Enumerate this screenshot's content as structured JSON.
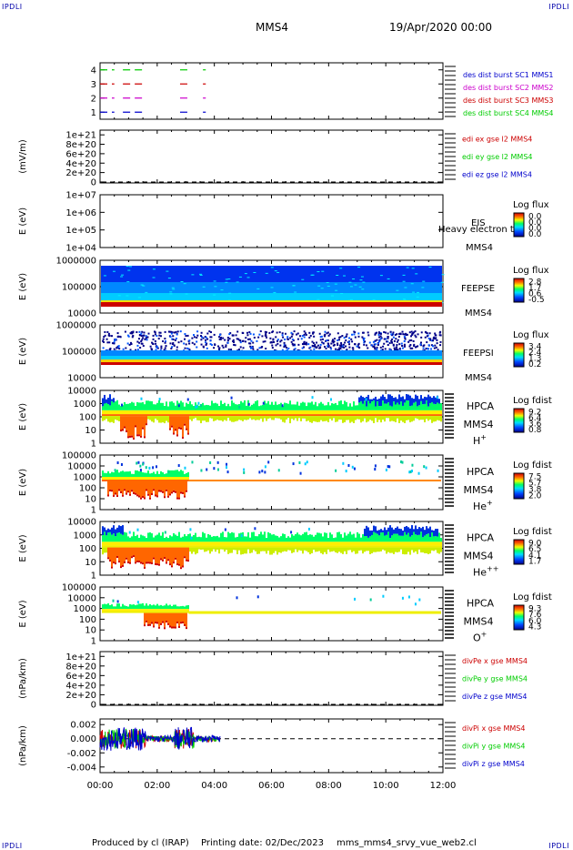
{
  "corners": {
    "top_left": "IPDLI",
    "top_right": "IPDLI",
    "bottom_left": "IPDLI",
    "bottom_right": "IPDLI"
  },
  "header": {
    "spacecraft": "MMS4",
    "date": "19/Apr/2020 00:00"
  },
  "footer": {
    "produced_by": "Produced by cl (IRAP)",
    "printing_date": "Printing date: 02/Dec/2023",
    "script": "mms_mms4_srvy_vue_web2.cl"
  },
  "colors": {
    "blue": "#0000cc",
    "red": "#cc0000",
    "green": "#00cc00",
    "magenta": "#cc00cc",
    "orange": "#ff5500",
    "yellow": "#eeee00"
  },
  "time_axis": {
    "ticks": [
      "00:00",
      "02:00",
      "04:00",
      "06:00",
      "08:00",
      "10:00",
      "12:00"
    ],
    "range_hours": [
      0,
      12
    ]
  },
  "chart_data": [
    {
      "type": "line",
      "title": "",
      "ylabel": "",
      "ylim": [
        0.5,
        4.5
      ],
      "yticks": [
        "4",
        "3",
        "2",
        "1"
      ],
      "series": [
        {
          "name": "des dist burst SC1 MMS1",
          "color": "#0000cc",
          "y": 1,
          "segments": [
            [
              0.0,
              0.5
            ],
            [
              0.8,
              1.5
            ],
            [
              2.8,
              3.1
            ],
            [
              3.6,
              3.7
            ]
          ]
        },
        {
          "name": "des dist burst SC2 MMS2",
          "color": "#cc00cc",
          "y": 2,
          "segments": [
            [
              0.0,
              0.5
            ],
            [
              0.8,
              1.5
            ],
            [
              2.8,
              3.1
            ],
            [
              3.6,
              3.7
            ]
          ]
        },
        {
          "name": "des dist burst SC3 MMS3",
          "color": "#cc0000",
          "y": 3,
          "segments": [
            [
              0.0,
              0.5
            ],
            [
              0.8,
              1.5
            ],
            [
              2.8,
              3.1
            ],
            [
              3.6,
              3.7
            ]
          ]
        },
        {
          "name": "des dist burst SC4 MMS4",
          "color": "#00cc00",
          "y": 4,
          "segments": [
            [
              0.0,
              0.5
            ],
            [
              0.8,
              1.5
            ],
            [
              2.8,
              3.1
            ],
            [
              3.6,
              3.7
            ]
          ]
        }
      ]
    },
    {
      "type": "line",
      "title": "",
      "ylabel": "(mV/m)",
      "ylim": [
        -2e+19,
        1.1e+21
      ],
      "yticks": [
        "1e+21",
        "8e+20",
        "6e+20",
        "4e+20",
        "2e+20",
        "0"
      ],
      "series": [
        {
          "name": "edi ex gse l2 MMS4",
          "color": "#cc0000"
        },
        {
          "name": "edi ey gse l2 MMS4",
          "color": "#00cc00"
        },
        {
          "name": "edi ez gse l2 MMS4",
          "color": "#0000cc"
        }
      ]
    },
    {
      "type": "heatmap",
      "ylabel": "E (eV)",
      "yticks": [
        "1e+07",
        "1e+06",
        "1e+05",
        "1e+04"
      ],
      "labels": [
        "EIS",
        "MMS4"
      ],
      "overlay_text": "Heavy electron tof",
      "colorbar": {
        "title": "Log flux",
        "ticks": [
          "0.0",
          "0.0",
          "0.0",
          "0.0"
        ]
      }
    },
    {
      "type": "heatmap",
      "ylabel": "E (eV)",
      "yticks": [
        "1000000",
        "100000",
        "10000"
      ],
      "labels": [
        "FEEPSE",
        "MMS4"
      ],
      "colorbar": {
        "title": "Log flux",
        "ticks": [
          "2.8",
          "1.7",
          "0.6",
          "-0.5"
        ]
      }
    },
    {
      "type": "heatmap",
      "ylabel": "E (eV)",
      "yticks": [
        "1000000",
        "100000",
        "10000"
      ],
      "labels": [
        "FEEPSI",
        "MMS4"
      ],
      "colorbar": {
        "title": "Log flux",
        "ticks": [
          "3.4",
          "2.4",
          "1.3",
          "0.2"
        ]
      }
    },
    {
      "type": "heatmap",
      "ylabel": "E (eV)",
      "yticks": [
        "10000",
        "1000",
        "100",
        "10",
        "1"
      ],
      "labels": [
        "HPCA",
        "MMS4"
      ],
      "species": "H",
      "species_sup": "+",
      "colorbar": {
        "title": "Log fdist",
        "ticks": [
          "9.2",
          "6.4",
          "3.6",
          "0.8"
        ]
      }
    },
    {
      "type": "heatmap",
      "ylabel": "E (eV)",
      "yticks": [
        "100000",
        "10000",
        "1000",
        "100",
        "10",
        "1"
      ],
      "labels": [
        "HPCA",
        "MMS4"
      ],
      "species": "He",
      "species_sup": "+",
      "colorbar": {
        "title": "Log fdist",
        "ticks": [
          "7.5",
          "5.7",
          "3.8",
          "2.0"
        ]
      }
    },
    {
      "type": "heatmap",
      "ylabel": "E (eV)",
      "yticks": [
        "10000",
        "1000",
        "100",
        "10",
        "1"
      ],
      "labels": [
        "HPCA",
        "MMS4"
      ],
      "species": "He",
      "species_sup": "++",
      "colorbar": {
        "title": "Log fdist",
        "ticks": [
          "9.0",
          "6.5",
          "4.1",
          "1.7"
        ]
      }
    },
    {
      "type": "heatmap",
      "ylabel": "E (eV)",
      "yticks": [
        "100000",
        "10000",
        "1000",
        "100",
        "10",
        "1"
      ],
      "labels": [
        "HPCA",
        "MMS4"
      ],
      "species": "O",
      "species_sup": "+",
      "colorbar": {
        "title": "Log fdist",
        "ticks": [
          "9.3",
          "7.6",
          "6.0",
          "4.3"
        ]
      }
    },
    {
      "type": "line",
      "ylabel": "(nPa/km)",
      "ylim": [
        -2e+19,
        1.1e+21
      ],
      "yticks": [
        "1e+21",
        "8e+20",
        "6e+20",
        "4e+20",
        "2e+20",
        "0"
      ],
      "series": [
        {
          "name": "divPe x gse MMS4",
          "color": "#cc0000"
        },
        {
          "name": "divPe y gse MMS4",
          "color": "#00cc00"
        },
        {
          "name": "divPe z gse MMS4",
          "color": "#0000cc"
        }
      ]
    },
    {
      "type": "line",
      "ylabel": "(nPa/km)",
      "ylim": [
        -0.0048,
        0.0028
      ],
      "yticks": [
        "0.002",
        "0.000",
        "-0.002",
        "-0.004"
      ],
      "data_extent_hours": [
        0,
        4.2
      ],
      "series": [
        {
          "name": "divPi x gse MMS4",
          "color": "#cc0000"
        },
        {
          "name": "divPi y gse MMS4",
          "color": "#00cc00"
        },
        {
          "name": "divPi z gse MMS4",
          "color": "#0000cc"
        }
      ]
    }
  ]
}
